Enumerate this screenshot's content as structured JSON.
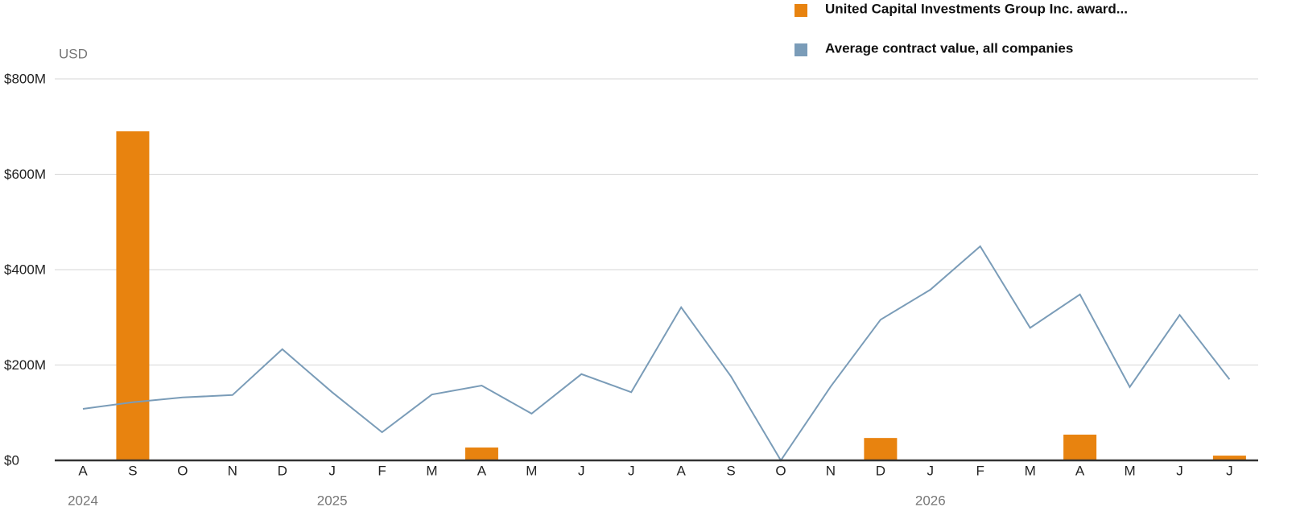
{
  "chart_data": {
    "type": "bar",
    "y_unit_label": "USD",
    "categories": [
      "A",
      "S",
      "O",
      "N",
      "D",
      "J",
      "F",
      "M",
      "A",
      "M",
      "J",
      "J",
      "A",
      "S",
      "O",
      "N",
      "D",
      "J",
      "F",
      "M",
      "A",
      "M",
      "J",
      "J"
    ],
    "years": [
      "2024",
      null,
      null,
      null,
      null,
      "2025",
      null,
      null,
      null,
      null,
      null,
      null,
      null,
      null,
      null,
      null,
      null,
      "2026",
      null,
      null,
      null,
      null,
      null,
      null
    ],
    "series": [
      {
        "name": "United Capital Investments Group Inc. award...",
        "color": "#e8830f",
        "type": "bar",
        "values": [
          null,
          690,
          null,
          null,
          null,
          null,
          null,
          null,
          27,
          null,
          null,
          null,
          null,
          null,
          null,
          null,
          47,
          null,
          null,
          null,
          54,
          null,
          null,
          10
        ]
      },
      {
        "name": "Average contract value, all companies",
        "color": "#7a9cb8",
        "type": "line",
        "values": [
          108,
          122,
          132,
          137,
          233,
          143,
          59,
          138,
          157,
          98,
          181,
          143,
          321,
          176,
          0,
          155,
          295,
          358,
          449,
          278,
          348,
          154,
          305,
          170
        ]
      }
    ],
    "ylim": [
      0,
      800
    ],
    "yticks": [
      {
        "value": 0,
        "label": "$0"
      },
      {
        "value": 200,
        "label": "$200M"
      },
      {
        "value": 400,
        "label": "$400M"
      },
      {
        "value": 600,
        "label": "$600M"
      },
      {
        "value": 800,
        "label": "$800M"
      }
    ],
    "grid": true
  }
}
